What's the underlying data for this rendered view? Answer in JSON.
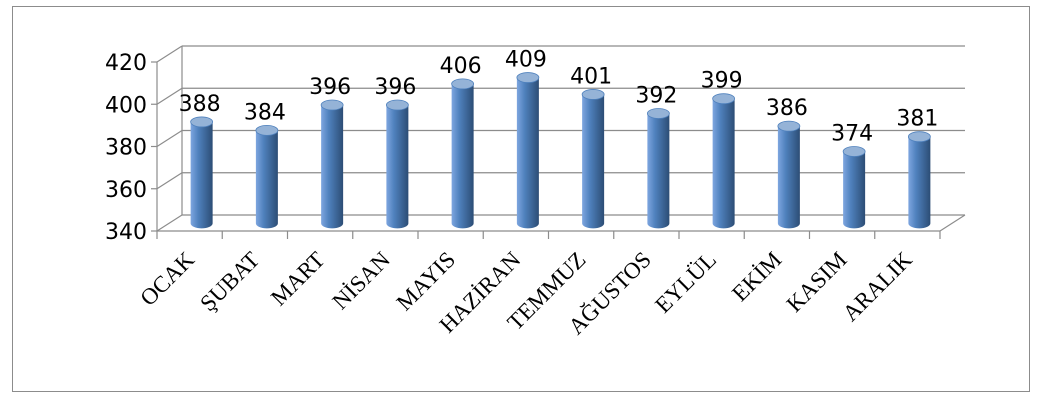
{
  "chart_data": {
    "type": "bar",
    "categories": [
      "OCAK",
      "ŞUBAT",
      "MART",
      "NİSAN",
      "MAYIS",
      "HAZİRAN",
      "TEMMUZ",
      "AĞUSTOS",
      "EYLÜL",
      "EKİM",
      "KASIM",
      "ARALIK"
    ],
    "values": [
      388,
      384,
      396,
      396,
      406,
      409,
      401,
      392,
      399,
      386,
      374,
      381
    ],
    "ylim": [
      340,
      420
    ],
    "yticks": [
      "340",
      "360",
      "380",
      "400",
      "420"
    ],
    "data_labels": [
      "388",
      "384",
      "396",
      "396",
      "406",
      "409",
      "401",
      "392",
      "399",
      "386",
      "374",
      "381"
    ],
    "title": "",
    "xlabel": "",
    "ylabel": "",
    "grid": true,
    "legend": "none",
    "style": "3d-cylinder",
    "colors": {
      "bar_light": "#7ea6e0",
      "bar_mid": "#4f81bd",
      "bar_dark": "#2c4d75",
      "bar_top": "#95b3d7",
      "grid": "#8c8c8c",
      "frame": "#8c8c8c"
    }
  }
}
